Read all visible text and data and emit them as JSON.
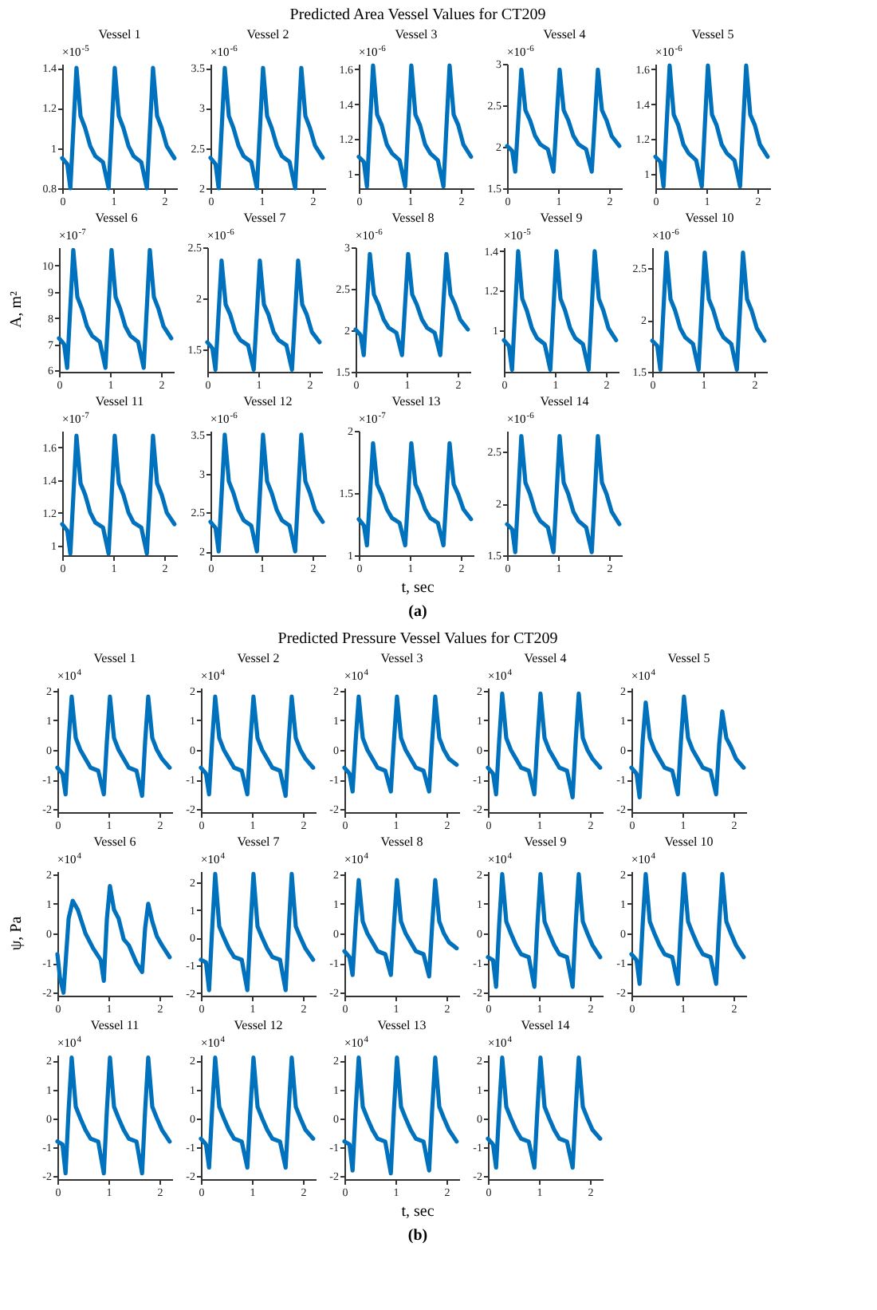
{
  "chart_data": [
    {
      "type": "other",
      "title": "Predicted Area Vessel Values for CT209",
      "xlabel": "t, sec",
      "ylabel": "A, m²",
      "annotations": [
        "(a)"
      ]
    },
    {
      "type": "line",
      "title": "Vessel 1",
      "annotations": [
        "×10$^{-5}$"
      ],
      "x": [
        0,
        0.1,
        0.16,
        0.22,
        0.28,
        0.36,
        0.45,
        0.55,
        0.65,
        0.8,
        0.91,
        0.97,
        1.03,
        1.11,
        1.2,
        1.3,
        1.4,
        1.55,
        1.66,
        1.72,
        1.78,
        1.86,
        1.95,
        2.05,
        2.2
      ],
      "xlim": [
        0,
        2.25
      ],
      "xticks": [
        0,
        1,
        2
      ],
      "ylim": [
        0.8,
        1.42
      ],
      "yticks": [
        0.8,
        1,
        1.2,
        1.4
      ],
      "color": "#0072bd",
      "values": [
        0.95,
        0.92,
        0.8,
        1.1,
        1.4,
        1.16,
        1.1,
        1.01,
        0.96,
        0.93,
        0.8,
        1.1,
        1.4,
        1.16,
        1.1,
        1.01,
        0.96,
        0.93,
        0.8,
        1.1,
        1.4,
        1.16,
        1.1,
        1.01,
        0.95
      ]
    },
    {
      "type": "line",
      "title": "Vessel 2",
      "annotations": [
        "×10$^{-6}$"
      ],
      "x": [
        0,
        0.1,
        0.16,
        0.22,
        0.28,
        0.36,
        0.45,
        0.55,
        0.65,
        0.8,
        0.91,
        0.97,
        1.03,
        1.11,
        1.2,
        1.3,
        1.4,
        1.55,
        1.66,
        1.72,
        1.78,
        1.86,
        1.95,
        2.05,
        2.2
      ],
      "xlim": [
        0,
        2.25
      ],
      "xticks": [
        0,
        1,
        2
      ],
      "ylim": [
        2,
        3.55
      ],
      "yticks": [
        2,
        2.5,
        3,
        3.5
      ],
      "color": "#0072bd",
      "values": [
        2.38,
        2.3,
        2.0,
        2.75,
        3.5,
        2.9,
        2.75,
        2.53,
        2.4,
        2.33,
        2.0,
        2.75,
        3.5,
        2.9,
        2.75,
        2.53,
        2.4,
        2.33,
        2.0,
        2.75,
        3.5,
        2.9,
        2.75,
        2.53,
        2.38
      ]
    },
    {
      "type": "line",
      "title": "Vessel 3",
      "annotations": [
        "×10$^{-6}$"
      ],
      "x": [
        0,
        0.1,
        0.16,
        0.22,
        0.28,
        0.36,
        0.45,
        0.55,
        0.65,
        0.8,
        0.91,
        0.97,
        1.03,
        1.11,
        1.2,
        1.3,
        1.4,
        1.55,
        1.66,
        1.72,
        1.78,
        1.86,
        1.95,
        2.05,
        2.2
      ],
      "xlim": [
        0,
        2.25
      ],
      "xticks": [
        0,
        1,
        2
      ],
      "ylim": [
        0.92,
        1.63
      ],
      "yticks": [
        1,
        1.2,
        1.4,
        1.6
      ],
      "color": "#0072bd",
      "values": [
        1.1,
        1.07,
        0.93,
        1.28,
        1.62,
        1.34,
        1.28,
        1.17,
        1.12,
        1.08,
        0.93,
        1.28,
        1.62,
        1.34,
        1.28,
        1.17,
        1.12,
        1.08,
        0.93,
        1.28,
        1.62,
        1.34,
        1.28,
        1.17,
        1.1
      ]
    },
    {
      "type": "line",
      "title": "Vessel 4",
      "annotations": [
        "×10$^{-6}$"
      ],
      "x": [
        0,
        0.1,
        0.16,
        0.22,
        0.28,
        0.36,
        0.45,
        0.55,
        0.65,
        0.8,
        0.91,
        0.97,
        1.03,
        1.11,
        1.2,
        1.3,
        1.4,
        1.55,
        1.66,
        1.72,
        1.78,
        1.86,
        1.95,
        2.05,
        2.2
      ],
      "xlim": [
        0,
        2.25
      ],
      "xticks": [
        0,
        1,
        2
      ],
      "ylim": [
        1.5,
        3
      ],
      "yticks": [
        1.5,
        2,
        2.5,
        3
      ],
      "color": "#0072bd",
      "values": [
        2.01,
        1.95,
        1.7,
        2.32,
        2.93,
        2.44,
        2.32,
        2.13,
        2.03,
        1.97,
        1.7,
        2.32,
        2.93,
        2.44,
        2.32,
        2.13,
        2.03,
        1.97,
        1.7,
        2.32,
        2.93,
        2.44,
        2.32,
        2.13,
        2.01
      ]
    },
    {
      "type": "line",
      "title": "Vessel 5",
      "annotations": [
        "×10$^{-6}$"
      ],
      "x": [
        0,
        0.1,
        0.16,
        0.22,
        0.28,
        0.36,
        0.45,
        0.55,
        0.65,
        0.8,
        0.91,
        0.97,
        1.03,
        1.11,
        1.2,
        1.3,
        1.4,
        1.55,
        1.66,
        1.72,
        1.78,
        1.86,
        1.95,
        2.05,
        2.2
      ],
      "xlim": [
        0,
        2.25
      ],
      "xticks": [
        0,
        1,
        2
      ],
      "ylim": [
        0.92,
        1.63
      ],
      "yticks": [
        1,
        1.2,
        1.4,
        1.6
      ],
      "color": "#0072bd",
      "values": [
        1.1,
        1.07,
        0.93,
        1.28,
        1.62,
        1.34,
        1.28,
        1.17,
        1.12,
        1.08,
        0.93,
        1.28,
        1.62,
        1.34,
        1.28,
        1.17,
        1.12,
        1.08,
        0.93,
        1.28,
        1.62,
        1.34,
        1.28,
        1.17,
        1.1
      ]
    },
    {
      "type": "line",
      "title": "Vessel 6",
      "annotations": [
        "×10$^{-7}$"
      ],
      "x": [
        0,
        0.1,
        0.16,
        0.22,
        0.28,
        0.36,
        0.45,
        0.55,
        0.65,
        0.8,
        0.91,
        0.97,
        1.03,
        1.11,
        1.2,
        1.3,
        1.4,
        1.55,
        1.66,
        1.72,
        1.78,
        1.86,
        1.95,
        2.05,
        2.2
      ],
      "xlim": [
        0,
        2.25
      ],
      "xticks": [
        0,
        1,
        2
      ],
      "ylim": [
        5.95,
        10.7
      ],
      "yticks": [
        6,
        7,
        8,
        9,
        10
      ],
      "color": "#0072bd",
      "values": [
        7.23,
        7.0,
        6.1,
        8.35,
        10.6,
        8.8,
        8.35,
        7.68,
        7.32,
        7.09,
        6.1,
        8.35,
        10.6,
        8.8,
        8.35,
        7.68,
        7.32,
        7.09,
        6.1,
        8.35,
        10.6,
        8.8,
        8.35,
        7.68,
        7.23
      ]
    },
    {
      "type": "line",
      "title": "Vessel 7",
      "annotations": [
        "×10$^{-6}$"
      ],
      "x": [
        0,
        0.1,
        0.16,
        0.22,
        0.28,
        0.36,
        0.45,
        0.55,
        0.65,
        0.8,
        0.91,
        0.97,
        1.03,
        1.11,
        1.2,
        1.3,
        1.4,
        1.55,
        1.66,
        1.72,
        1.78,
        1.86,
        1.95,
        2.05,
        2.2
      ],
      "xlim": [
        0,
        2.25
      ],
      "xticks": [
        0,
        1,
        2
      ],
      "ylim": [
        1.28,
        2.5
      ],
      "yticks": [
        1.5,
        2,
        2.5
      ],
      "color": "#0072bd",
      "values": [
        1.57,
        1.51,
        1.3,
        1.84,
        2.37,
        1.94,
        1.84,
        1.67,
        1.59,
        1.54,
        1.3,
        1.84,
        2.37,
        1.94,
        1.84,
        1.67,
        1.59,
        1.54,
        1.3,
        1.84,
        2.37,
        1.94,
        1.84,
        1.67,
        1.57
      ]
    },
    {
      "type": "line",
      "title": "Vessel 8",
      "annotations": [
        "×10$^{-6}$"
      ],
      "x": [
        0,
        0.1,
        0.16,
        0.22,
        0.28,
        0.36,
        0.45,
        0.55,
        0.65,
        0.8,
        0.91,
        0.97,
        1.03,
        1.11,
        1.2,
        1.3,
        1.4,
        1.55,
        1.66,
        1.72,
        1.78,
        1.86,
        1.95,
        2.05,
        2.2
      ],
      "xlim": [
        0,
        2.25
      ],
      "xticks": [
        0,
        1,
        2
      ],
      "ylim": [
        1.5,
        3
      ],
      "yticks": [
        1.5,
        2,
        2.5,
        3
      ],
      "color": "#0072bd",
      "values": [
        2.01,
        1.94,
        1.7,
        2.31,
        2.92,
        2.43,
        2.31,
        2.13,
        2.03,
        1.97,
        1.7,
        2.31,
        2.92,
        2.43,
        2.31,
        2.13,
        2.03,
        1.97,
        1.7,
        2.31,
        2.92,
        2.43,
        2.31,
        2.13,
        2.01
      ]
    },
    {
      "type": "line",
      "title": "Vessel 9",
      "annotations": [
        "×10$^{-5}$"
      ],
      "x": [
        0,
        0.1,
        0.16,
        0.22,
        0.28,
        0.36,
        0.45,
        0.55,
        0.65,
        0.8,
        0.91,
        0.97,
        1.03,
        1.11,
        1.2,
        1.3,
        1.4,
        1.55,
        1.66,
        1.72,
        1.78,
        1.86,
        1.95,
        2.05,
        2.2
      ],
      "xlim": [
        0,
        2.25
      ],
      "xticks": [
        0,
        1,
        2
      ],
      "ylim": [
        0.79,
        1.42
      ],
      "yticks": [
        1,
        1.2,
        1.4
      ],
      "color": "#0072bd",
      "values": [
        0.95,
        0.92,
        0.8,
        1.1,
        1.4,
        1.16,
        1.1,
        1.01,
        0.96,
        0.93,
        0.8,
        1.1,
        1.4,
        1.16,
        1.1,
        1.01,
        0.96,
        0.93,
        0.8,
        1.1,
        1.4,
        1.16,
        1.1,
        1.01,
        0.95
      ]
    },
    {
      "type": "line",
      "title": "Vessel 10",
      "annotations": [
        "×10$^{-6}$"
      ],
      "x": [
        0,
        0.1,
        0.16,
        0.22,
        0.28,
        0.36,
        0.45,
        0.55,
        0.65,
        0.8,
        0.91,
        0.97,
        1.03,
        1.11,
        1.2,
        1.3,
        1.4,
        1.55,
        1.66,
        1.72,
        1.78,
        1.86,
        1.95,
        2.05,
        2.2
      ],
      "xlim": [
        0,
        2.25
      ],
      "xticks": [
        0,
        1,
        2
      ],
      "ylim": [
        1.5,
        2.7
      ],
      "yticks": [
        1.5,
        2,
        2.5
      ],
      "color": "#0072bd",
      "values": [
        1.8,
        1.75,
        1.52,
        2.09,
        2.65,
        2.2,
        2.09,
        1.92,
        1.83,
        1.77,
        1.52,
        2.09,
        2.65,
        2.2,
        2.09,
        1.92,
        1.83,
        1.77,
        1.52,
        2.09,
        2.65,
        2.2,
        2.09,
        1.92,
        1.8
      ]
    },
    {
      "type": "line",
      "title": "Vessel 11",
      "annotations": [
        "×10$^{-7}$"
      ],
      "x": [
        0,
        0.1,
        0.16,
        0.22,
        0.28,
        0.36,
        0.45,
        0.55,
        0.65,
        0.8,
        0.91,
        0.97,
        1.03,
        1.11,
        1.2,
        1.3,
        1.4,
        1.55,
        1.66,
        1.72,
        1.78,
        1.86,
        1.95,
        2.05,
        2.2
      ],
      "xlim": [
        0,
        2.25
      ],
      "xticks": [
        0,
        1,
        2
      ],
      "ylim": [
        0.94,
        1.7
      ],
      "yticks": [
        1,
        1.2,
        1.4,
        1.6
      ],
      "color": "#0072bd",
      "values": [
        1.13,
        1.09,
        0.95,
        1.31,
        1.67,
        1.38,
        1.31,
        1.2,
        1.14,
        1.11,
        0.95,
        1.31,
        1.67,
        1.38,
        1.31,
        1.2,
        1.14,
        1.11,
        0.95,
        1.31,
        1.67,
        1.38,
        1.31,
        1.2,
        1.13
      ]
    },
    {
      "type": "line",
      "title": "Vessel 12",
      "annotations": [
        "×10$^{-6}$"
      ],
      "x": [
        0,
        0.1,
        0.16,
        0.22,
        0.28,
        0.36,
        0.45,
        0.55,
        0.65,
        0.8,
        0.91,
        0.97,
        1.03,
        1.11,
        1.2,
        1.3,
        1.4,
        1.55,
        1.66,
        1.72,
        1.78,
        1.86,
        1.95,
        2.05,
        2.2
      ],
      "xlim": [
        0,
        2.25
      ],
      "xticks": [
        0,
        1,
        2
      ],
      "ylim": [
        1.95,
        3.55
      ],
      "yticks": [
        2,
        2.5,
        3,
        3.5
      ],
      "color": "#0072bd",
      "values": [
        2.38,
        2.3,
        2.0,
        2.75,
        3.5,
        2.9,
        2.75,
        2.53,
        2.4,
        2.33,
        2.0,
        2.75,
        3.5,
        2.9,
        2.75,
        2.53,
        2.4,
        2.33,
        2.0,
        2.75,
        3.5,
        2.9,
        2.75,
        2.53,
        2.38
      ]
    },
    {
      "type": "line",
      "title": "Vessel 13",
      "annotations": [
        "×10$^{-7}$"
      ],
      "x": [
        0,
        0.1,
        0.16,
        0.22,
        0.28,
        0.36,
        0.45,
        0.55,
        0.65,
        0.8,
        0.91,
        0.97,
        1.03,
        1.11,
        1.2,
        1.3,
        1.4,
        1.55,
        1.66,
        1.72,
        1.78,
        1.86,
        1.95,
        2.05,
        2.2
      ],
      "xlim": [
        0,
        2.25
      ],
      "xticks": [
        0,
        1,
        2
      ],
      "ylim": [
        1,
        2
      ],
      "yticks": [
        1,
        1.5,
        2
      ],
      "color": "#0072bd",
      "values": [
        1.29,
        1.24,
        1.08,
        1.49,
        1.9,
        1.57,
        1.49,
        1.37,
        1.3,
        1.26,
        1.08,
        1.49,
        1.9,
        1.57,
        1.49,
        1.37,
        1.3,
        1.26,
        1.08,
        1.49,
        1.9,
        1.57,
        1.49,
        1.37,
        1.29
      ]
    },
    {
      "type": "line",
      "title": "Vessel 14",
      "annotations": [
        "×10$^{-6}$"
      ],
      "x": [
        0,
        0.1,
        0.16,
        0.22,
        0.28,
        0.36,
        0.45,
        0.55,
        0.65,
        0.8,
        0.91,
        0.97,
        1.03,
        1.11,
        1.2,
        1.3,
        1.4,
        1.55,
        1.66,
        1.72,
        1.78,
        1.86,
        1.95,
        2.05,
        2.2
      ],
      "xlim": [
        0,
        2.25
      ],
      "xticks": [
        0,
        1,
        2
      ],
      "ylim": [
        1.5,
        2.7
      ],
      "yticks": [
        1.5,
        2,
        2.5
      ],
      "color": "#0072bd",
      "values": [
        1.8,
        1.75,
        1.53,
        2.09,
        2.65,
        2.2,
        2.09,
        1.92,
        1.83,
        1.77,
        1.53,
        2.09,
        2.65,
        2.2,
        2.09,
        1.92,
        1.83,
        1.77,
        1.53,
        2.09,
        2.65,
        2.2,
        2.09,
        1.92,
        1.8
      ]
    },
    {
      "type": "other",
      "title": "Predicted Pressure Vessel Values for CT209",
      "xlabel": "t, sec",
      "ylabel": "ψ, Pa",
      "annotations": [
        "(b)"
      ]
    },
    {
      "type": "line",
      "title": "Vessel 1",
      "annotations": [
        "×10$^{4}$"
      ],
      "x": [
        0,
        0.1,
        0.16,
        0.22,
        0.28,
        0.36,
        0.45,
        0.55,
        0.65,
        0.8,
        0.91,
        0.97,
        1.03,
        1.11,
        1.2,
        1.3,
        1.4,
        1.55,
        1.66,
        1.72,
        1.78,
        1.86,
        1.95,
        2.05,
        2.2
      ],
      "xlim": [
        0,
        2.25
      ],
      "xticks": [
        0,
        1,
        2
      ],
      "ylim": [
        -2.1,
        2.1
      ],
      "yticks": [
        -2,
        -1,
        0,
        1,
        2
      ],
      "color": "#0072bd",
      "values": [
        -0.6,
        -0.8,
        -1.5,
        0.3,
        1.8,
        0.4,
        0,
        -0.3,
        -0.6,
        -0.7,
        -1.5,
        0.3,
        1.8,
        0.4,
        0,
        -0.3,
        -0.6,
        -0.7,
        -1.55,
        0.3,
        1.8,
        0.4,
        0,
        -0.3,
        -0.6
      ]
    },
    {
      "type": "line",
      "title": "Vessel 2",
      "annotations": [
        "×10$^{4}$"
      ],
      "x": [
        0,
        0.1,
        0.16,
        0.22,
        0.28,
        0.36,
        0.45,
        0.55,
        0.65,
        0.8,
        0.91,
        0.97,
        1.03,
        1.11,
        1.2,
        1.3,
        1.4,
        1.55,
        1.66,
        1.72,
        1.78,
        1.86,
        1.95,
        2.05,
        2.2
      ],
      "xlim": [
        0,
        2.25
      ],
      "xticks": [
        0,
        1,
        2
      ],
      "ylim": [
        -2.1,
        2.1
      ],
      "yticks": [
        -2,
        -1,
        0,
        1,
        2
      ],
      "color": "#0072bd",
      "values": [
        -0.6,
        -0.8,
        -1.5,
        0.3,
        1.8,
        0.4,
        0,
        -0.3,
        -0.6,
        -0.7,
        -1.5,
        0.3,
        1.8,
        0.4,
        0,
        -0.3,
        -0.6,
        -0.7,
        -1.55,
        0.3,
        1.8,
        0.4,
        0,
        -0.3,
        -0.6
      ]
    },
    {
      "type": "line",
      "title": "Vessel 3",
      "annotations": [
        "×10$^{4}$"
      ],
      "x": [
        0,
        0.1,
        0.16,
        0.22,
        0.28,
        0.36,
        0.45,
        0.55,
        0.65,
        0.8,
        0.91,
        0.97,
        1.03,
        1.11,
        1.2,
        1.3,
        1.4,
        1.55,
        1.66,
        1.72,
        1.78,
        1.86,
        1.95,
        2.05,
        2.2
      ],
      "xlim": [
        0,
        2.25
      ],
      "xticks": [
        0,
        1,
        2
      ],
      "ylim": [
        -2.1,
        2.1
      ],
      "yticks": [
        -2,
        -1,
        0,
        1,
        2
      ],
      "color": "#0072bd",
      "values": [
        -0.6,
        -0.8,
        -1.4,
        0.3,
        1.8,
        0.4,
        0,
        -0.3,
        -0.6,
        -0.7,
        -1.4,
        0.3,
        1.8,
        0.4,
        0,
        -0.3,
        -0.6,
        -0.7,
        -1.4,
        0.3,
        1.8,
        0.4,
        0,
        -0.3,
        -0.5
      ]
    },
    {
      "type": "line",
      "title": "Vessel 4",
      "annotations": [
        "×10$^{4}$"
      ],
      "x": [
        0,
        0.1,
        0.16,
        0.22,
        0.28,
        0.36,
        0.45,
        0.55,
        0.65,
        0.8,
        0.91,
        0.97,
        1.03,
        1.11,
        1.2,
        1.3,
        1.4,
        1.55,
        1.66,
        1.72,
        1.78,
        1.86,
        1.95,
        2.05,
        2.2
      ],
      "xlim": [
        0,
        2.25
      ],
      "xticks": [
        0,
        1,
        2
      ],
      "ylim": [
        -2.1,
        2.1
      ],
      "yticks": [
        -2,
        -1,
        0,
        1,
        2
      ],
      "color": "#0072bd",
      "values": [
        -0.6,
        -0.8,
        -1.5,
        0.3,
        1.9,
        0.4,
        0,
        -0.3,
        -0.6,
        -0.7,
        -1.5,
        0.3,
        1.9,
        0.4,
        0,
        -0.3,
        -0.6,
        -0.7,
        -1.6,
        0.3,
        1.9,
        0.4,
        0,
        -0.3,
        -0.6
      ]
    },
    {
      "type": "line",
      "title": "Vessel 5",
      "annotations": [
        "×10$^{4}$"
      ],
      "x": [
        0,
        0.1,
        0.16,
        0.22,
        0.28,
        0.36,
        0.45,
        0.55,
        0.65,
        0.8,
        0.91,
        0.97,
        1.03,
        1.11,
        1.2,
        1.3,
        1.4,
        1.55,
        1.66,
        1.72,
        1.78,
        1.86,
        1.95,
        2.05,
        2.2
      ],
      "xlim": [
        0,
        2.25
      ],
      "xticks": [
        0,
        1,
        2
      ],
      "ylim": [
        -2.1,
        2.1
      ],
      "yticks": [
        -2,
        -1,
        0,
        1,
        2
      ],
      "color": "#0072bd",
      "values": [
        -0.6,
        -0.8,
        -1.6,
        0.3,
        1.6,
        0.4,
        0,
        -0.3,
        -0.6,
        -0.7,
        -1.5,
        0.3,
        1.8,
        0.4,
        0,
        -0.3,
        -0.6,
        -0.7,
        -1.5,
        0.2,
        1.3,
        0.4,
        0.1,
        -0.3,
        -0.6
      ]
    },
    {
      "type": "line",
      "title": "Vessel 6",
      "annotations": [
        "×10$^{4}$"
      ],
      "x": [
        0,
        0.05,
        0.12,
        0.22,
        0.3,
        0.4,
        0.55,
        0.7,
        0.85,
        0.91,
        0.97,
        1.03,
        1.11,
        1.2,
        1.3,
        1.4,
        1.55,
        1.66,
        1.72,
        1.78,
        1.86,
        1.95,
        2.05,
        2.2
      ],
      "xlim": [
        0,
        2.25
      ],
      "xticks": [
        0,
        1,
        2
      ],
      "ylim": [
        -2.1,
        2.1
      ],
      "yticks": [
        -2,
        -1,
        0,
        1,
        2
      ],
      "color": "#0072bd",
      "values": [
        -0.7,
        -1.5,
        -2.0,
        0.5,
        1.1,
        0.8,
        0,
        -0.5,
        -0.9,
        -1.6,
        0.5,
        1.6,
        0.8,
        0.5,
        -0.2,
        -0.4,
        -1.0,
        -1.3,
        0.2,
        1.0,
        0.4,
        -0.1,
        -0.4,
        -0.8
      ]
    },
    {
      "type": "line",
      "title": "Vessel 7",
      "annotations": [
        "×10$^{4}$"
      ],
      "x": [
        0,
        0.1,
        0.16,
        0.22,
        0.28,
        0.36,
        0.45,
        0.55,
        0.65,
        0.8,
        0.91,
        0.97,
        1.03,
        1.11,
        1.2,
        1.3,
        1.4,
        1.55,
        1.66,
        1.72,
        1.78,
        1.86,
        1.95,
        2.05,
        2.2
      ],
      "xlim": [
        0,
        2.25
      ],
      "xticks": [
        0,
        1,
        2
      ],
      "ylim": [
        -2.1,
        2.4
      ],
      "yticks": [
        -2,
        -1,
        0,
        1,
        2
      ],
      "color": "#0072bd",
      "values": [
        -0.8,
        -0.9,
        -1.9,
        0.3,
        2.3,
        0.4,
        0,
        -0.4,
        -0.7,
        -0.8,
        -1.9,
        0.3,
        2.3,
        0.4,
        0,
        -0.4,
        -0.7,
        -0.8,
        -1.9,
        0.3,
        2.3,
        0.4,
        0,
        -0.4,
        -0.8
      ]
    },
    {
      "type": "line",
      "title": "Vessel 8",
      "annotations": [
        "×10$^{4}$"
      ],
      "x": [
        0,
        0.1,
        0.16,
        0.22,
        0.28,
        0.36,
        0.45,
        0.55,
        0.65,
        0.8,
        0.91,
        0.97,
        1.03,
        1.11,
        1.2,
        1.3,
        1.4,
        1.55,
        1.66,
        1.72,
        1.78,
        1.86,
        1.95,
        2.05,
        2.2
      ],
      "xlim": [
        0,
        2.25
      ],
      "xticks": [
        0,
        1,
        2
      ],
      "ylim": [
        -2.1,
        2.1
      ],
      "yticks": [
        -2,
        -1,
        0,
        1,
        2
      ],
      "color": "#0072bd",
      "values": [
        -0.6,
        -0.8,
        -1.4,
        0.3,
        1.8,
        0.4,
        0,
        -0.3,
        -0.6,
        -0.7,
        -1.4,
        0.3,
        1.8,
        0.4,
        0,
        -0.3,
        -0.6,
        -0.7,
        -1.45,
        0.3,
        1.8,
        0.4,
        0,
        -0.3,
        -0.5
      ]
    },
    {
      "type": "line",
      "title": "Vessel 9",
      "annotations": [
        "×10$^{4}$"
      ],
      "x": [
        0,
        0.1,
        0.16,
        0.22,
        0.28,
        0.36,
        0.45,
        0.55,
        0.65,
        0.8,
        0.91,
        0.97,
        1.03,
        1.11,
        1.2,
        1.3,
        1.4,
        1.55,
        1.66,
        1.72,
        1.78,
        1.86,
        1.95,
        2.05,
        2.2
      ],
      "xlim": [
        0,
        2.25
      ],
      "xticks": [
        0,
        1,
        2
      ],
      "ylim": [
        -2.1,
        2.1
      ],
      "yticks": [
        -2,
        -1,
        0,
        1,
        2
      ],
      "color": "#0072bd",
      "values": [
        -0.8,
        -0.9,
        -1.8,
        0.3,
        2.0,
        0.4,
        0,
        -0.4,
        -0.7,
        -0.8,
        -1.8,
        0.3,
        2.0,
        0.4,
        0,
        -0.4,
        -0.7,
        -0.8,
        -1.8,
        0.3,
        2.0,
        0.4,
        0,
        -0.4,
        -0.8
      ]
    },
    {
      "type": "line",
      "title": "Vessel 10",
      "annotations": [
        "×10$^{4}$"
      ],
      "x": [
        0,
        0.1,
        0.16,
        0.22,
        0.28,
        0.36,
        0.45,
        0.55,
        0.65,
        0.8,
        0.91,
        0.97,
        1.03,
        1.11,
        1.2,
        1.3,
        1.4,
        1.55,
        1.66,
        1.72,
        1.78,
        1.86,
        1.95,
        2.05,
        2.2
      ],
      "xlim": [
        0,
        2.25
      ],
      "xticks": [
        0,
        1,
        2
      ],
      "ylim": [
        -2.1,
        2.1
      ],
      "yticks": [
        -2,
        -1,
        0,
        1,
        2
      ],
      "color": "#0072bd",
      "values": [
        -0.7,
        -0.9,
        -1.7,
        0.3,
        2.0,
        0.4,
        0,
        -0.4,
        -0.7,
        -0.8,
        -1.7,
        0.3,
        2.0,
        0.4,
        0,
        -0.4,
        -0.7,
        -0.8,
        -1.7,
        0.3,
        2.0,
        0.4,
        0,
        -0.4,
        -0.8
      ]
    },
    {
      "type": "line",
      "title": "Vessel 11",
      "annotations": [
        "×10$^{4}$"
      ],
      "x": [
        0,
        0.1,
        0.16,
        0.22,
        0.28,
        0.36,
        0.45,
        0.55,
        0.65,
        0.8,
        0.91,
        0.97,
        1.03,
        1.11,
        1.2,
        1.3,
        1.4,
        1.55,
        1.66,
        1.72,
        1.78,
        1.86,
        1.95,
        2.05,
        2.2
      ],
      "xlim": [
        0,
        2.25
      ],
      "xticks": [
        0,
        1,
        2
      ],
      "ylim": [
        -2.1,
        2.2
      ],
      "yticks": [
        -2,
        -1,
        0,
        1,
        2
      ],
      "color": "#0072bd",
      "values": [
        -0.8,
        -0.9,
        -1.9,
        0.3,
        2.1,
        0.4,
        0,
        -0.4,
        -0.7,
        -0.8,
        -1.9,
        0.3,
        2.1,
        0.4,
        0,
        -0.4,
        -0.7,
        -0.8,
        -1.9,
        0.3,
        2.1,
        0.4,
        0,
        -0.4,
        -0.8
      ]
    },
    {
      "type": "line",
      "title": "Vessel 12",
      "annotations": [
        "×10$^{4}$"
      ],
      "x": [
        0,
        0.1,
        0.16,
        0.22,
        0.28,
        0.36,
        0.45,
        0.55,
        0.65,
        0.8,
        0.91,
        0.97,
        1.03,
        1.11,
        1.2,
        1.3,
        1.4,
        1.55,
        1.66,
        1.72,
        1.78,
        1.86,
        1.95,
        2.05,
        2.2
      ],
      "xlim": [
        0,
        2.25
      ],
      "xticks": [
        0,
        1,
        2
      ],
      "ylim": [
        -2.1,
        2.2
      ],
      "yticks": [
        -2,
        -1,
        0,
        1,
        2
      ],
      "color": "#0072bd",
      "values": [
        -0.7,
        -0.9,
        -1.7,
        0.3,
        2.1,
        0.4,
        0,
        -0.4,
        -0.7,
        -0.8,
        -1.7,
        0.3,
        2.1,
        0.4,
        0,
        -0.4,
        -0.7,
        -0.8,
        -1.7,
        0.3,
        2.1,
        0.4,
        0,
        -0.4,
        -0.7
      ]
    },
    {
      "type": "line",
      "title": "Vessel 13",
      "annotations": [
        "×10$^{4}$"
      ],
      "x": [
        0,
        0.1,
        0.16,
        0.22,
        0.28,
        0.36,
        0.45,
        0.55,
        0.65,
        0.8,
        0.91,
        0.97,
        1.03,
        1.11,
        1.2,
        1.3,
        1.4,
        1.55,
        1.66,
        1.72,
        1.78,
        1.86,
        1.95,
        2.05,
        2.2
      ],
      "xlim": [
        0,
        2.25
      ],
      "xticks": [
        0,
        1,
        2
      ],
      "ylim": [
        -2.1,
        2.2
      ],
      "yticks": [
        -2,
        -1,
        0,
        1,
        2
      ],
      "color": "#0072bd",
      "values": [
        -0.8,
        -0.9,
        -1.8,
        0.3,
        2.1,
        0.4,
        0,
        -0.4,
        -0.7,
        -0.8,
        -1.9,
        0.3,
        2.1,
        0.4,
        0,
        -0.4,
        -0.7,
        -0.8,
        -1.8,
        0.3,
        2.1,
        0.4,
        0,
        -0.4,
        -0.8
      ]
    },
    {
      "type": "line",
      "title": "Vessel 14",
      "annotations": [
        "×10$^{4}$"
      ],
      "x": [
        0,
        0.1,
        0.16,
        0.22,
        0.28,
        0.36,
        0.45,
        0.55,
        0.65,
        0.8,
        0.91,
        0.97,
        1.03,
        1.11,
        1.2,
        1.3,
        1.4,
        1.55,
        1.66,
        1.72,
        1.78,
        1.86,
        1.95,
        2.05,
        2.2
      ],
      "xlim": [
        0,
        2.25
      ],
      "xticks": [
        0,
        1,
        2
      ],
      "ylim": [
        -2.1,
        2.2
      ],
      "yticks": [
        -2,
        -1,
        0,
        1,
        2
      ],
      "color": "#0072bd",
      "values": [
        -0.7,
        -0.9,
        -1.7,
        0.3,
        2.1,
        0.4,
        0,
        -0.4,
        -0.7,
        -0.8,
        -1.7,
        0.3,
        2.1,
        0.4,
        0,
        -0.4,
        -0.7,
        -0.8,
        -1.7,
        0.3,
        2.1,
        0.4,
        0,
        -0.4,
        -0.7
      ]
    }
  ]
}
